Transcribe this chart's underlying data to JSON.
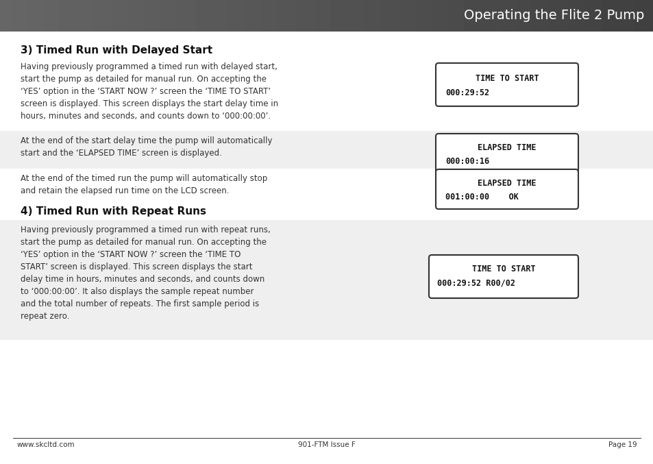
{
  "header_title": "Operating the Flite 2 Pump",
  "header_bg": "#5a5a5a",
  "header_gradient_start": "#aaaaaa",
  "header_gradient_end": "#555555",
  "header_text_color": "#ffffff",
  "page_bg": "#ffffff",
  "section1_title": "3) Timed Run with Delayed Start",
  "section1_para1": "Having previously programmed a timed run with delayed start,\nstart the pump as detailed for manual run. On accepting the\n‘YES’ option in the ‘START NOW ?’ screen the ‘TIME TO START’\nscreen is displayed. This screen displays the start delay time in\nhours, minutes and seconds, and counts down to ‘000:00:00’.",
  "section1_bg1": "#ffffff",
  "section1_para2": "At the end of the start delay time the pump will automatically\nstart and the ‘ELAPSED TIME’ screen is displayed.",
  "section1_bg2": "#efefef",
  "section1_para3": "At the end of the timed run the pump will automatically stop\nand retain the elapsed run time on the LCD screen.",
  "section1_bg3": "#ffffff",
  "section2_title": "4) Timed Run with Repeat Runs",
  "section2_para1": "Having previously programmed a timed run with repeat runs,\nstart the pump as detailed for manual run. On accepting the\n‘YES’ option in the ‘START NOW ?’ screen the ‘TIME TO\nSTART’ screen is displayed. This screen displays the start\ndelay time in hours, minutes and seconds, and counts down\nto ‘000:00:00’. It also displays the sample repeat number\nand the total number of repeats. The first sample period is\nrepeat zero.",
  "section2_bg1": "#efefef",
  "lcd1_line1": "TIME TO START",
  "lcd1_line2": "000:29:52",
  "lcd2_line1": "ELAPSED TIME",
  "lcd2_line2": "000:00:16",
  "lcd3_line1": "ELAPSED TIME",
  "lcd3_line2": "001:00:00    OK",
  "lcd4_line1": "TIME TO START",
  "lcd4_line2": "000:29:52 R00/02",
  "lcd_bg": "#ffffff",
  "lcd_border": "#333333",
  "lcd_text_color": "#111111",
  "footer_left": "www.skcltd.com",
  "footer_center": "901-FTM Issue F",
  "footer_right": "Page 19",
  "footer_line_color": "#333333",
  "footer_text_color": "#333333",
  "text_color": "#333333",
  "title_color": "#111111"
}
